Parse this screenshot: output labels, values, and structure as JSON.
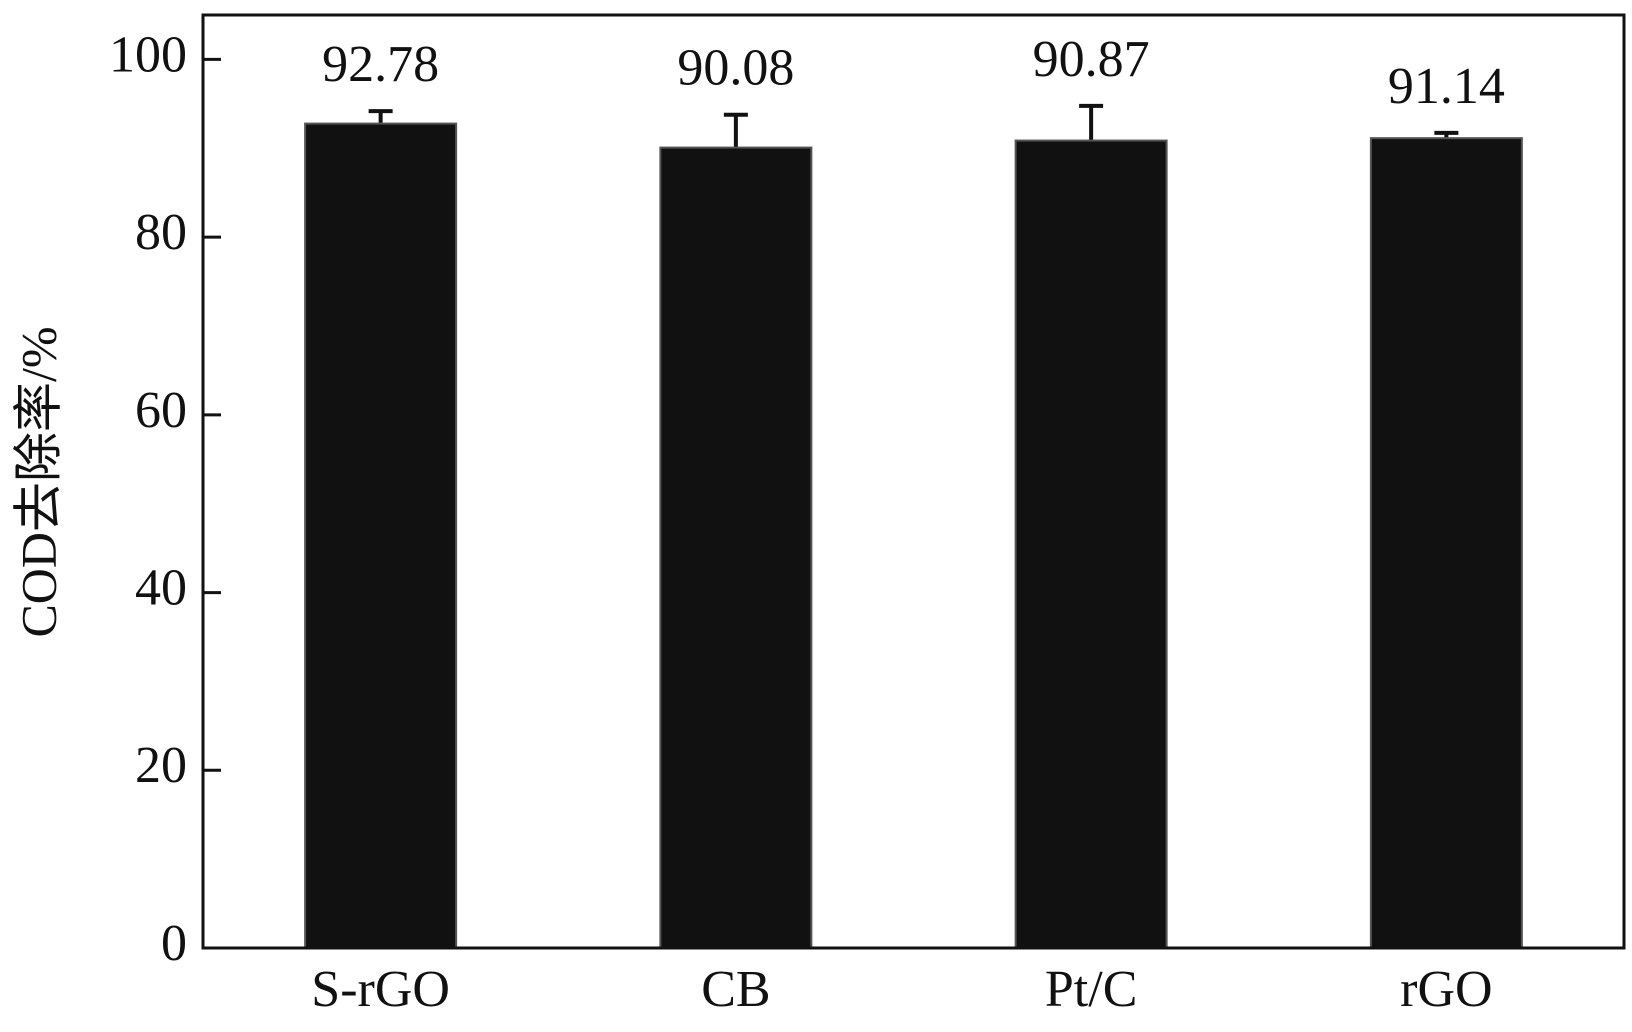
{
  "chart_data": {
    "type": "bar",
    "y_label": "COD去除率/%",
    "categories": [
      "S-rGO",
      "CB",
      "Pt/C",
      "rGO"
    ],
    "values": [
      92.78,
      90.08,
      90.87,
      91.14
    ],
    "errors": [
      1.4,
      3.7,
      3.9,
      0.6
    ],
    "color": "#111111",
    "ylim": [
      0,
      105
    ],
    "yticks": [
      0,
      20,
      40,
      60,
      80,
      100
    ]
  }
}
